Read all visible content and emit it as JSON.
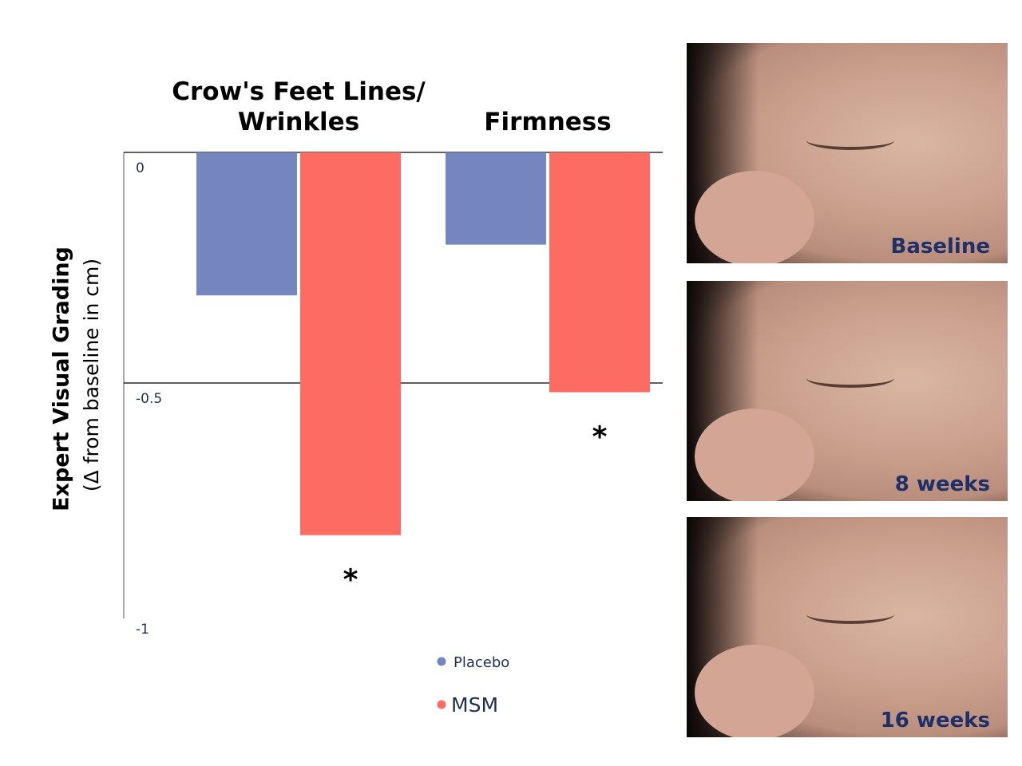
{
  "chart_data": {
    "type": "bar",
    "categories": [
      "Crow's Feet Lines/ Wrinkles",
      "Firmness"
    ],
    "series": [
      {
        "name": "Placebo",
        "color": "#7586bf",
        "values": [
          -0.31,
          -0.2
        ]
      },
      {
        "name": "MSM",
        "color": "#fd6c63",
        "values": [
          -0.83,
          -0.52
        ],
        "annotations": [
          "*",
          "*"
        ]
      }
    ],
    "ylabel": "Expert Visual Grading",
    "ylabel_note": "(Δ from baseline in cm)",
    "ylim": [
      -1,
      0
    ],
    "yticks": [
      0,
      -0.5,
      -1
    ],
    "grid": true
  },
  "photos": [
    {
      "caption": "Baseline"
    },
    {
      "caption": "8 weeks"
    },
    {
      "caption": "16 weeks"
    }
  ]
}
